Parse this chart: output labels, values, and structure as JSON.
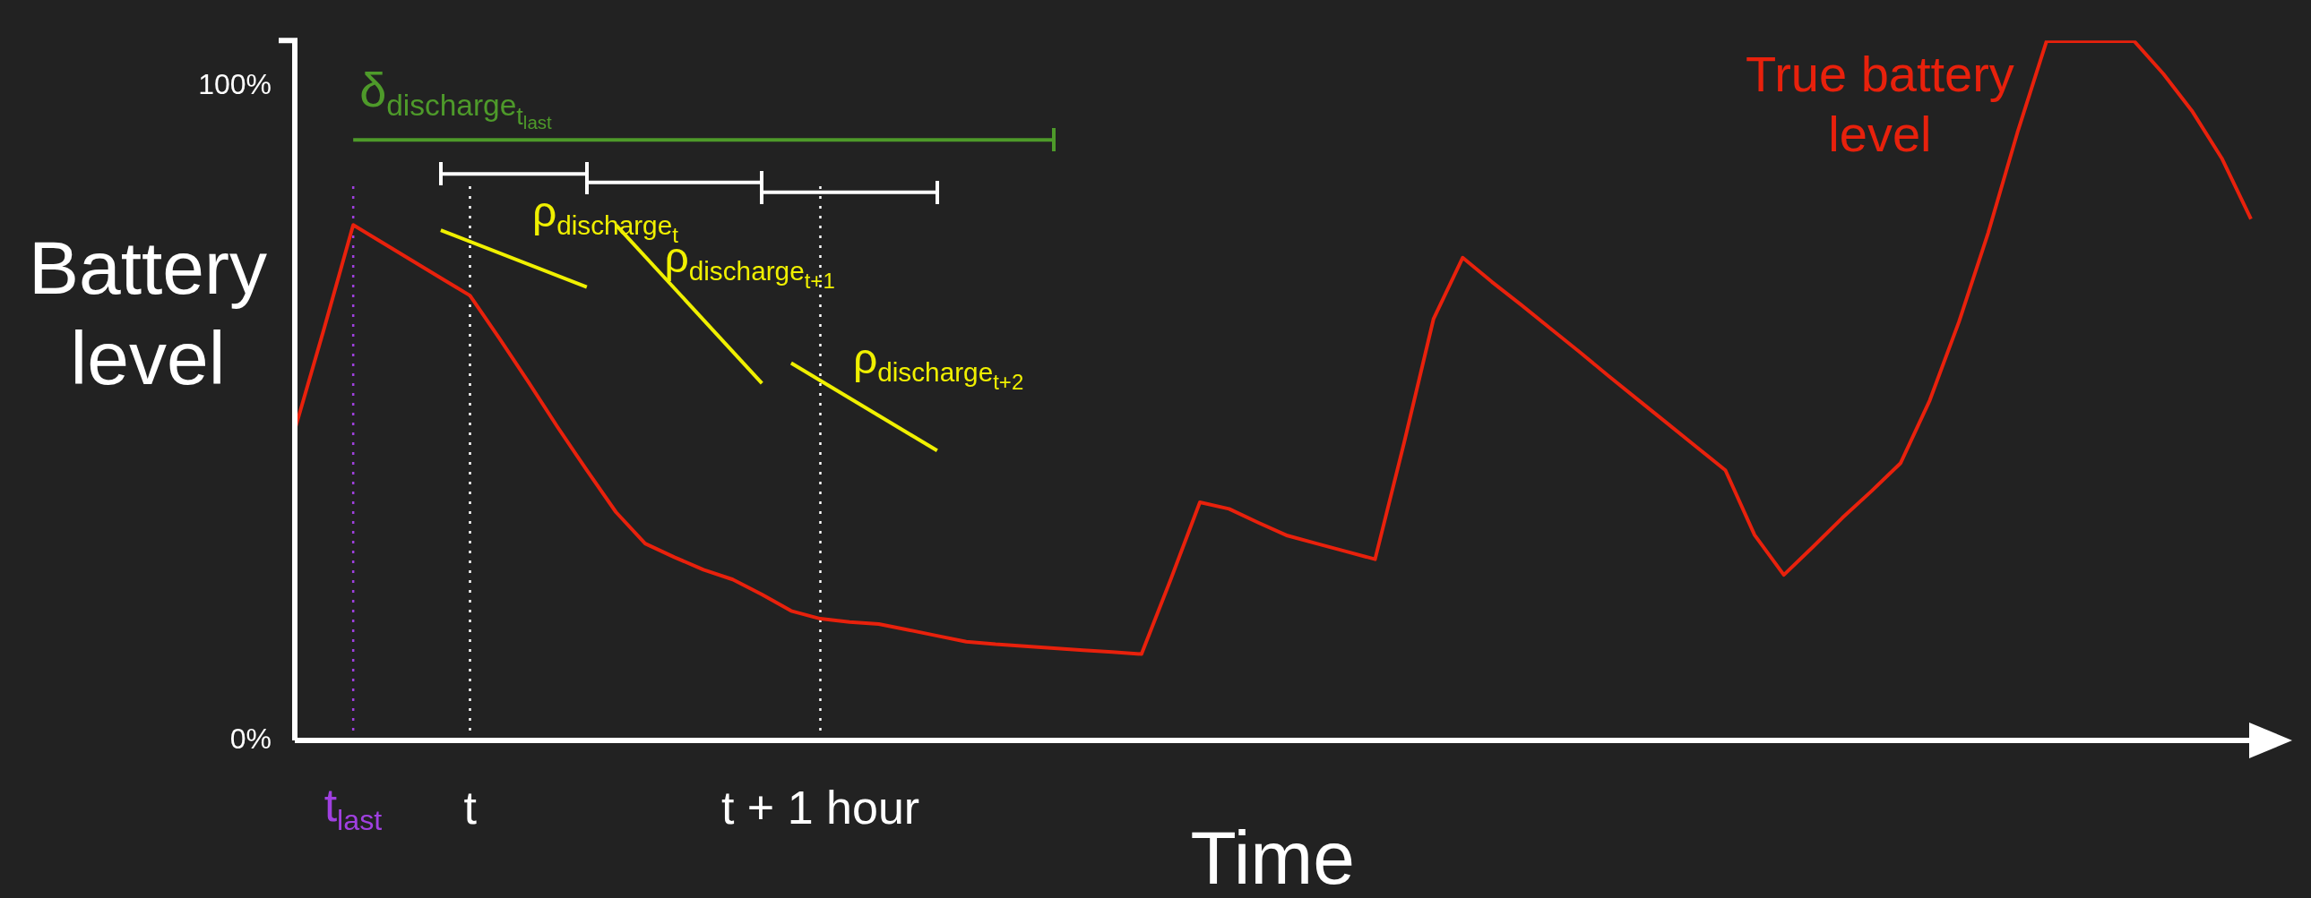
{
  "chart_data": {
    "type": "line",
    "xlabel": "Time",
    "ylabel": "Battery level",
    "categories": [
      null,
      null,
      "t$_{last}$",
      null,
      null,
      null,
      "t",
      null,
      null,
      null,
      null,
      null,
      null,
      null,
      null,
      null,
      null,
      null,
      "t + 1 hour",
      null,
      null,
      null,
      null,
      null,
      null,
      null,
      null,
      null,
      null,
      null,
      null,
      null,
      null,
      null,
      null,
      null,
      null,
      null,
      null,
      null,
      null,
      null,
      null,
      null,
      null,
      null,
      null,
      null,
      null,
      null,
      null,
      null,
      null,
      null,
      null,
      null,
      null,
      null,
      null,
      null,
      null,
      null,
      null,
      null,
      null,
      null,
      null,
      null
    ],
    "ylim": [
      0,
      107
    ],
    "yticks": [
      {
        "value": 0,
        "label": "0%"
      },
      {
        "value": 100,
        "label": "100%"
      }
    ],
    "grid": false,
    "legend": false,
    "line_style": "solid",
    "ref_lines": [
      {
        "axis": "x",
        "value": "t$_{last}$",
        "color": "#a040e0",
        "line_style": "dotted"
      },
      {
        "axis": "x",
        "value": "t",
        "color": "#ffffff",
        "line_style": "dotted"
      },
      {
        "axis": "x",
        "value": "t + 1 hour",
        "color": "#ffffff",
        "line_style": "dotted"
      }
    ],
    "series": [
      {
        "name": "True battery level",
        "color": "#e8210c",
        "marker": "none",
        "values": [
          47.5,
          62.9,
          78.8,
          76.1,
          73.4,
          70.7,
          68,
          61.5,
          54.8,
          47.9,
          41.3,
          34.9,
          30.1,
          28,
          26.1,
          24.6,
          22.3,
          19.8,
          18.6,
          18.1,
          17.8,
          16.9,
          16,
          15.1,
          14.7,
          14.4,
          14.1,
          13.8,
          13.5,
          13.2,
          24.6,
          36.4,
          35.4,
          33.3,
          31.3,
          30.1,
          28.9,
          27.7,
          45.6,
          64.4,
          73.8,
          70.1,
          66.6,
          63,
          59.4,
          55.7,
          52.1,
          48.5,
          44.9,
          41.3,
          31.4,
          25.3,
          29.6,
          34,
          38.1,
          42.4,
          52,
          64,
          77.6,
          92.9,
          106.9,
          106.9,
          106.9,
          106.9,
          101.9,
          96.1,
          89,
          79.7
        ]
      },
      {
        "name": "δ$_{discharge}$$_{t}$$_{last}$",
        "color": "#4e9a2a",
        "values": [
          null,
          null,
          91.8,
          null,
          null,
          null,
          null,
          null,
          null,
          null,
          null,
          null,
          null,
          null,
          null,
          null,
          null,
          null,
          null,
          null,
          null,
          null,
          null,
          null,
          null,
          null,
          91.8,
          null,
          null,
          null,
          null,
          null,
          null,
          null,
          null,
          null,
          null,
          null,
          null,
          null,
          null,
          null,
          null,
          null,
          null,
          null,
          null,
          null,
          null,
          null,
          null,
          null,
          null,
          null,
          null,
          null,
          null,
          null,
          null,
          null,
          null,
          null,
          null,
          null,
          null,
          null,
          null,
          null
        ]
      },
      {
        "color": "#ffffff",
        "values": [
          null,
          null,
          null,
          null,
          null,
          86.6,
          null,
          null,
          null,
          null,
          86.6,
          null,
          null,
          null,
          null,
          null,
          null,
          null,
          null,
          null,
          null,
          null,
          null,
          null,
          null,
          null,
          null,
          null,
          null,
          null,
          null,
          null,
          null,
          null,
          null,
          null,
          null,
          null,
          null,
          null,
          null,
          null,
          null,
          null,
          null,
          null,
          null,
          null,
          null,
          null,
          null,
          null,
          null,
          null,
          null,
          null,
          null,
          null,
          null,
          null,
          null,
          null,
          null,
          null,
          null,
          null,
          null,
          null
        ]
      },
      {
        "color": "#ffffff",
        "values": [
          null,
          null,
          null,
          null,
          null,
          null,
          null,
          null,
          null,
          null,
          85.3,
          null,
          null,
          null,
          null,
          null,
          85.3,
          null,
          null,
          null,
          null,
          null,
          null,
          null,
          null,
          null,
          null,
          null,
          null,
          null,
          null,
          null,
          null,
          null,
          null,
          null,
          null,
          null,
          null,
          null,
          null,
          null,
          null,
          null,
          null,
          null,
          null,
          null,
          null,
          null,
          null,
          null,
          null,
          null,
          null,
          null,
          null,
          null,
          null,
          null,
          null,
          null,
          null,
          null,
          null,
          null,
          null,
          null
        ]
      },
      {
        "color": "#ffffff",
        "values": [
          null,
          null,
          null,
          null,
          null,
          null,
          null,
          null,
          null,
          null,
          null,
          null,
          null,
          null,
          null,
          null,
          83.8,
          null,
          null,
          null,
          null,
          null,
          83.8,
          null,
          null,
          null,
          null,
          null,
          null,
          null,
          null,
          null,
          null,
          null,
          null,
          null,
          null,
          null,
          null,
          null,
          null,
          null,
          null,
          null,
          null,
          null,
          null,
          null,
          null,
          null,
          null,
          null,
          null,
          null,
          null,
          null,
          null,
          null,
          null,
          null,
          null,
          null,
          null,
          null,
          null,
          null,
          null,
          null
        ]
      },
      {
        "name": "ρ$_{discharge}$$_{t}$",
        "color": "#f0f000",
        "marker": "none",
        "values": [
          null,
          null,
          null,
          null,
          null,
          78,
          null,
          null,
          null,
          null,
          69.3,
          null,
          null,
          null,
          null,
          null,
          null,
          null,
          null,
          null,
          null,
          null,
          null,
          null,
          null,
          null,
          null,
          null,
          null,
          null,
          null,
          null,
          null,
          null,
          null,
          null,
          null,
          null,
          null,
          null,
          null,
          null,
          null,
          null,
          null,
          null,
          null,
          null,
          null,
          null,
          null,
          null,
          null,
          null,
          null,
          null,
          null,
          null,
          null,
          null,
          null,
          null,
          null,
          null,
          null,
          null,
          null,
          null
        ]
      },
      {
        "name": "ρ$_{discharge}$$_{t+1}$",
        "color": "#f0f000",
        "marker": "none",
        "values": [
          null,
          null,
          null,
          null,
          null,
          null,
          null,
          null,
          null,
          null,
          null,
          78.8,
          null,
          null,
          null,
          null,
          54.6,
          null,
          null,
          null,
          null,
          null,
          null,
          null,
          null,
          null,
          null,
          null,
          null,
          null,
          null,
          null,
          null,
          null,
          null,
          null,
          null,
          null,
          null,
          null,
          null,
          null,
          null,
          null,
          null,
          null,
          null,
          null,
          null,
          null,
          null,
          null,
          null,
          null,
          null,
          null,
          null,
          null,
          null,
          null,
          null,
          null,
          null,
          null,
          null,
          null,
          null,
          null
        ]
      },
      {
        "name": "ρ$_{discharge}$$_{t+2}$",
        "color": "#f0f000",
        "marker": "none",
        "values": [
          null,
          null,
          null,
          null,
          null,
          null,
          null,
          null,
          null,
          null,
          null,
          null,
          null,
          null,
          null,
          null,
          null,
          57.7,
          null,
          null,
          null,
          null,
          44.3,
          null,
          null,
          null,
          null,
          null,
          null,
          null,
          null,
          null,
          null,
          null,
          null,
          null,
          null,
          null,
          null,
          null,
          null,
          null,
          null,
          null,
          null,
          null,
          null,
          null,
          null,
          null,
          null,
          null,
          null,
          null,
          null,
          null,
          null,
          null,
          null,
          null,
          null,
          null,
          null,
          null,
          null,
          null,
          null,
          null
        ]
      }
    ]
  }
}
